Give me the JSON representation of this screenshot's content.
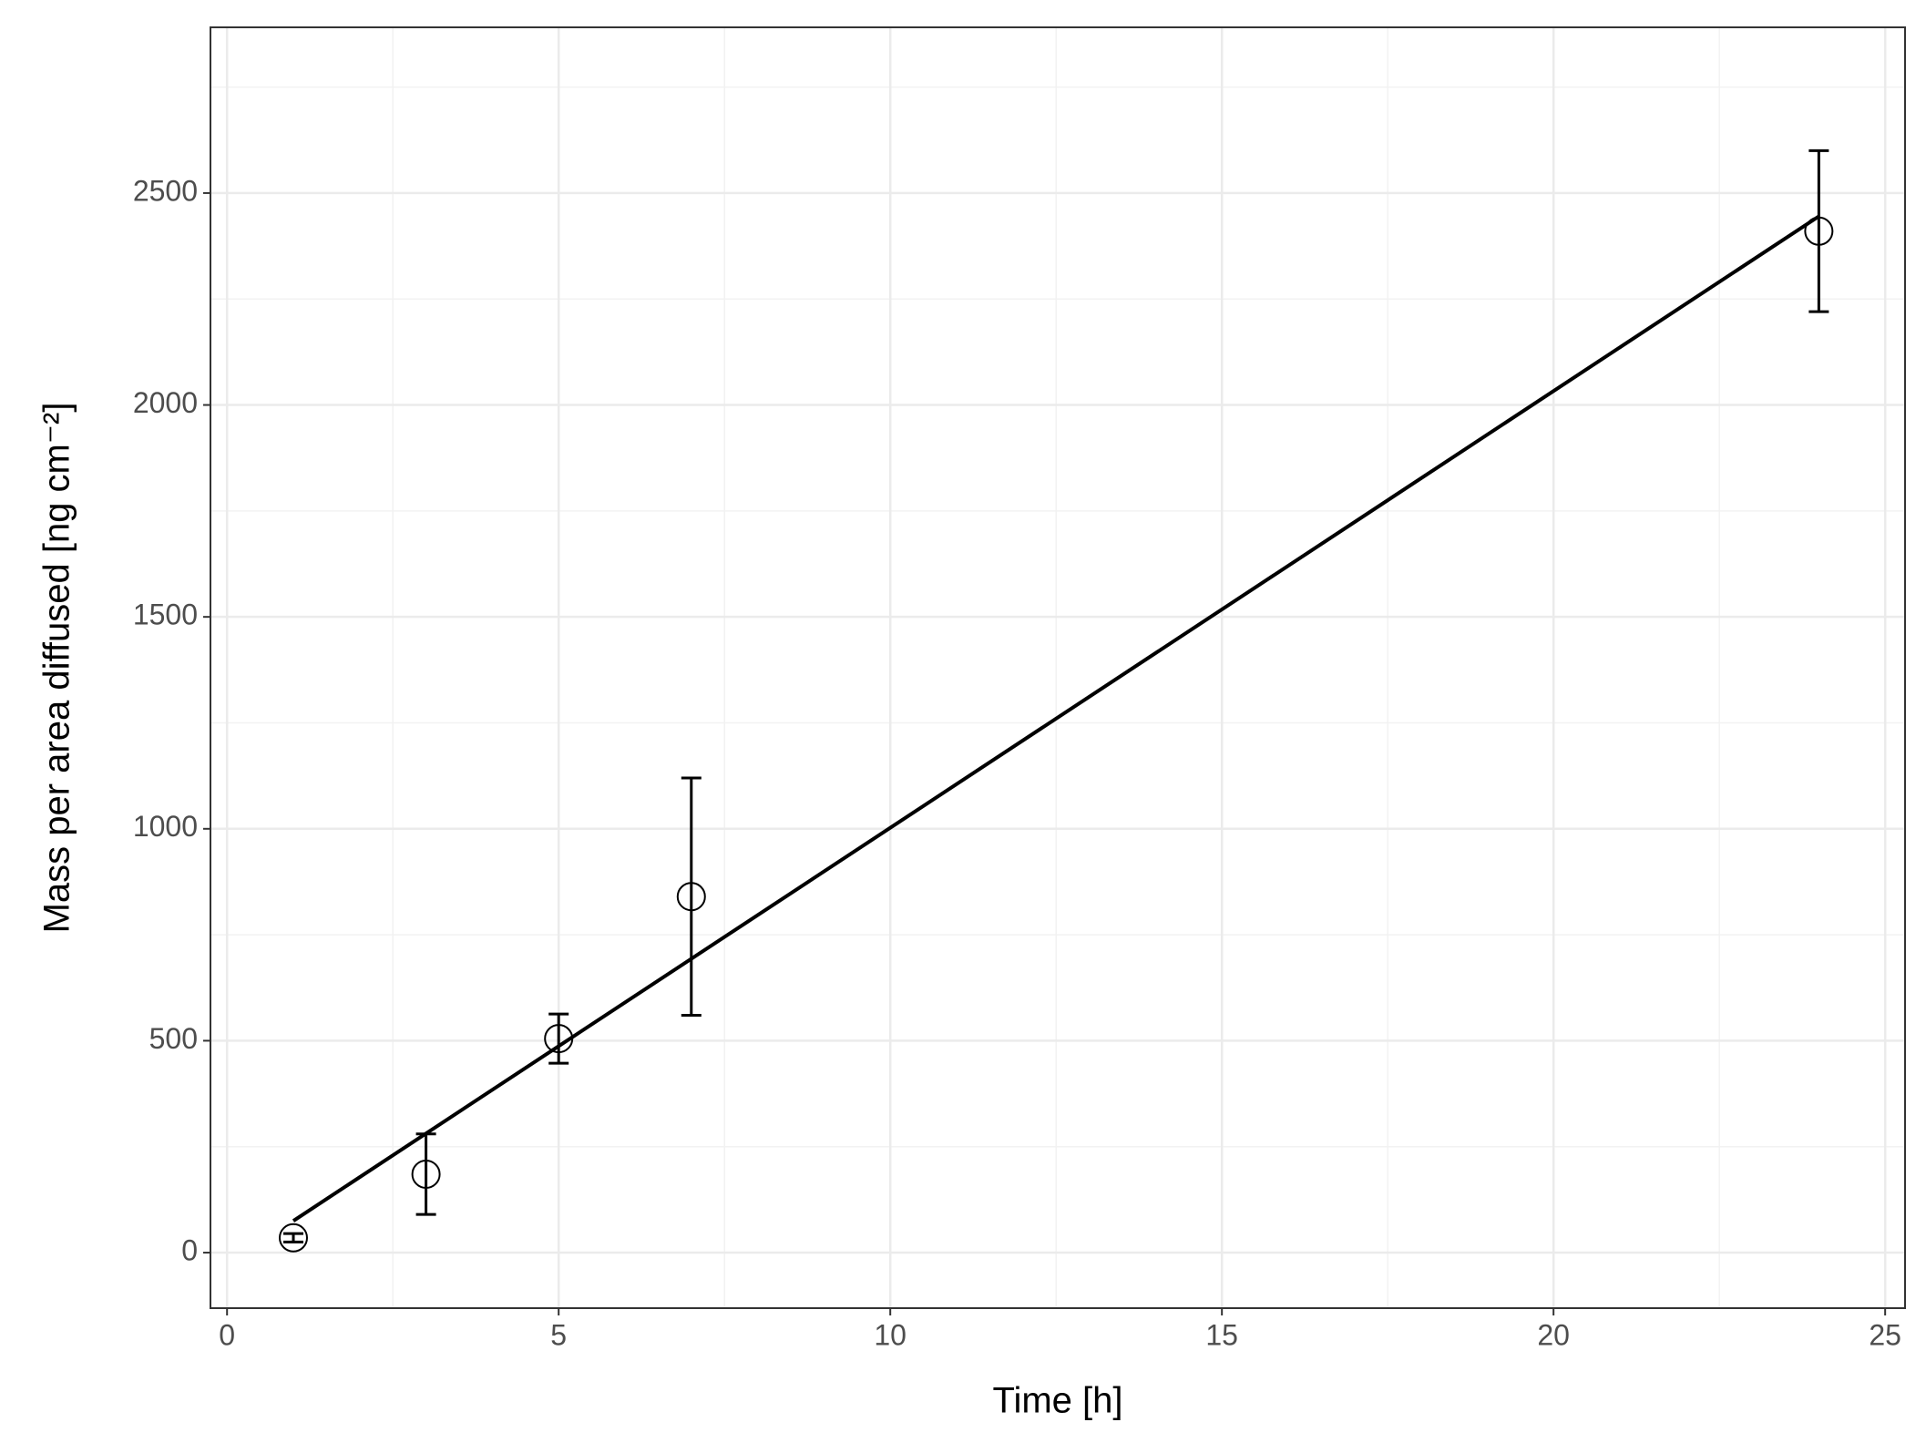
{
  "chart_data": {
    "type": "scatter",
    "x_label": "Time [h]",
    "y_label": "Mass per area diffused [ng cm⁻²]",
    "points": {
      "x": [
        1,
        3,
        5,
        7,
        24
      ],
      "values": [
        35,
        185,
        505,
        840,
        2410
      ],
      "errors": [
        10,
        95,
        58,
        280,
        190
      ],
      "color": "#000000"
    },
    "fit": {
      "x": [
        1,
        24
      ],
      "values": [
        75,
        2445
      ],
      "color": "#000000"
    },
    "xlim": [
      -0.25,
      25.3
    ],
    "xticks": [
      0,
      5,
      10,
      15,
      20,
      25
    ],
    "xminor": [
      2.5,
      7.5,
      12.5,
      17.5,
      22.5
    ],
    "ylim": [
      -131,
      2891
    ],
    "yticks": [
      0,
      500,
      1000,
      1500,
      2000,
      2500
    ],
    "yminor": [
      250,
      750,
      1250,
      1750,
      2250,
      2750
    ],
    "grid": true
  }
}
